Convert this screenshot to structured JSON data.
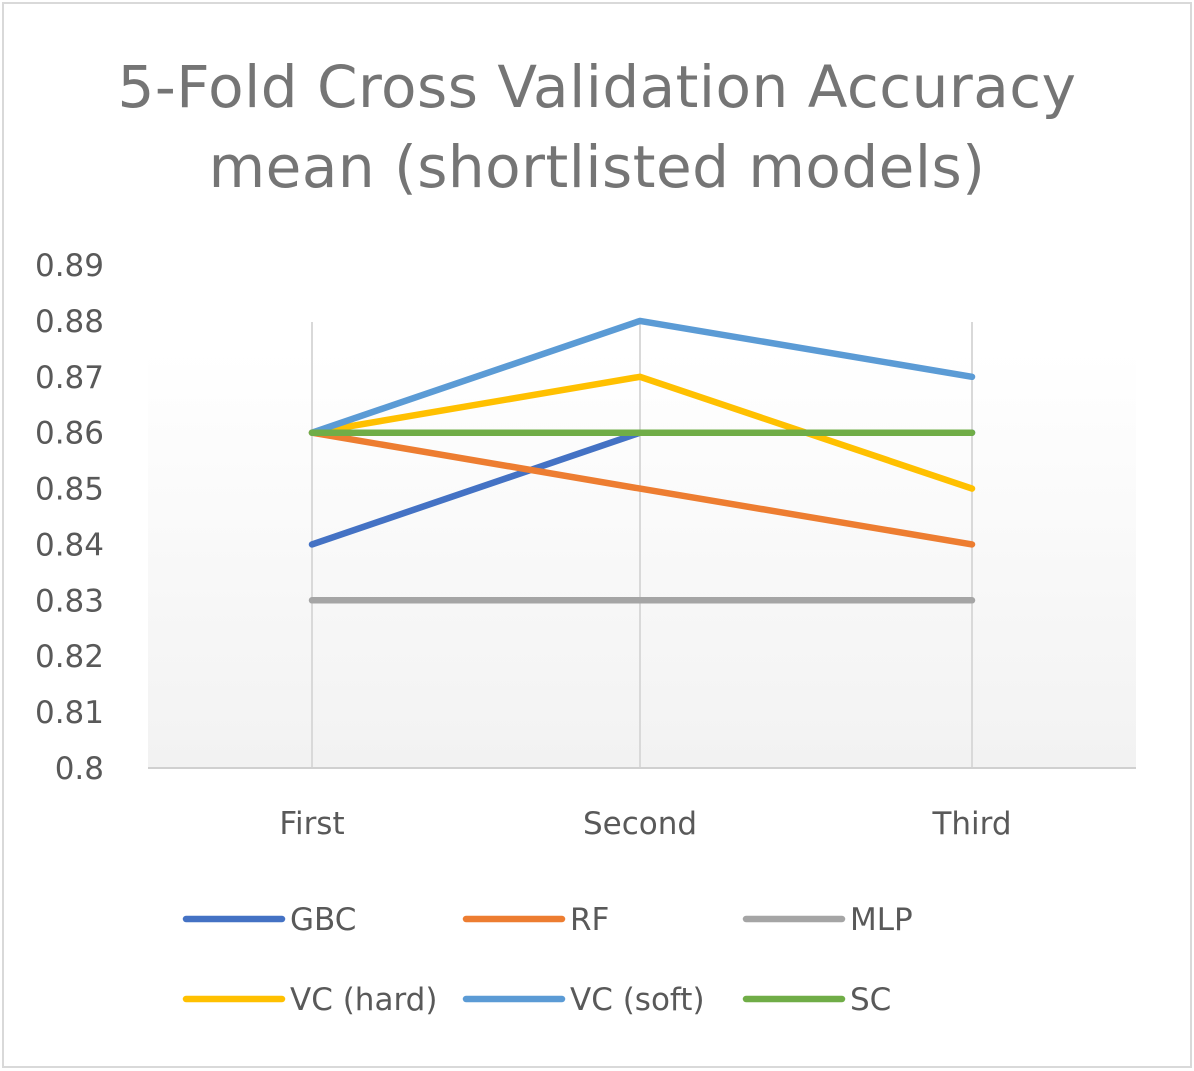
{
  "chart_data": {
    "type": "line",
    "title_line1": "5-Fold Cross Validation Accuracy",
    "title_line2": "mean (shortlisted models)",
    "categories": [
      "First",
      "Second",
      "Third"
    ],
    "ylim": [
      0.8,
      0.89
    ],
    "yticks": [
      "0.8",
      "0.81",
      "0.82",
      "0.83",
      "0.84",
      "0.85",
      "0.86",
      "0.87",
      "0.88",
      "0.89"
    ],
    "grid": "vertical",
    "legend_position": "bottom",
    "series": [
      {
        "name": "GBC",
        "values": [
          0.84,
          0.86,
          0.86
        ],
        "color": "#4472c4"
      },
      {
        "name": "RF",
        "values": [
          0.86,
          0.85,
          0.84
        ],
        "color": "#ed7d31"
      },
      {
        "name": "MLP",
        "values": [
          0.83,
          0.83,
          0.83
        ],
        "color": "#a5a5a5"
      },
      {
        "name": "VC (hard)",
        "values": [
          0.86,
          0.87,
          0.85
        ],
        "color": "#ffc000"
      },
      {
        "name": "VC (soft)",
        "values": [
          0.86,
          0.88,
          0.87
        ],
        "color": "#5b9bd5"
      },
      {
        "name": "SC",
        "values": [
          0.86,
          0.86,
          0.86
        ],
        "color": "#70ad47"
      }
    ]
  }
}
